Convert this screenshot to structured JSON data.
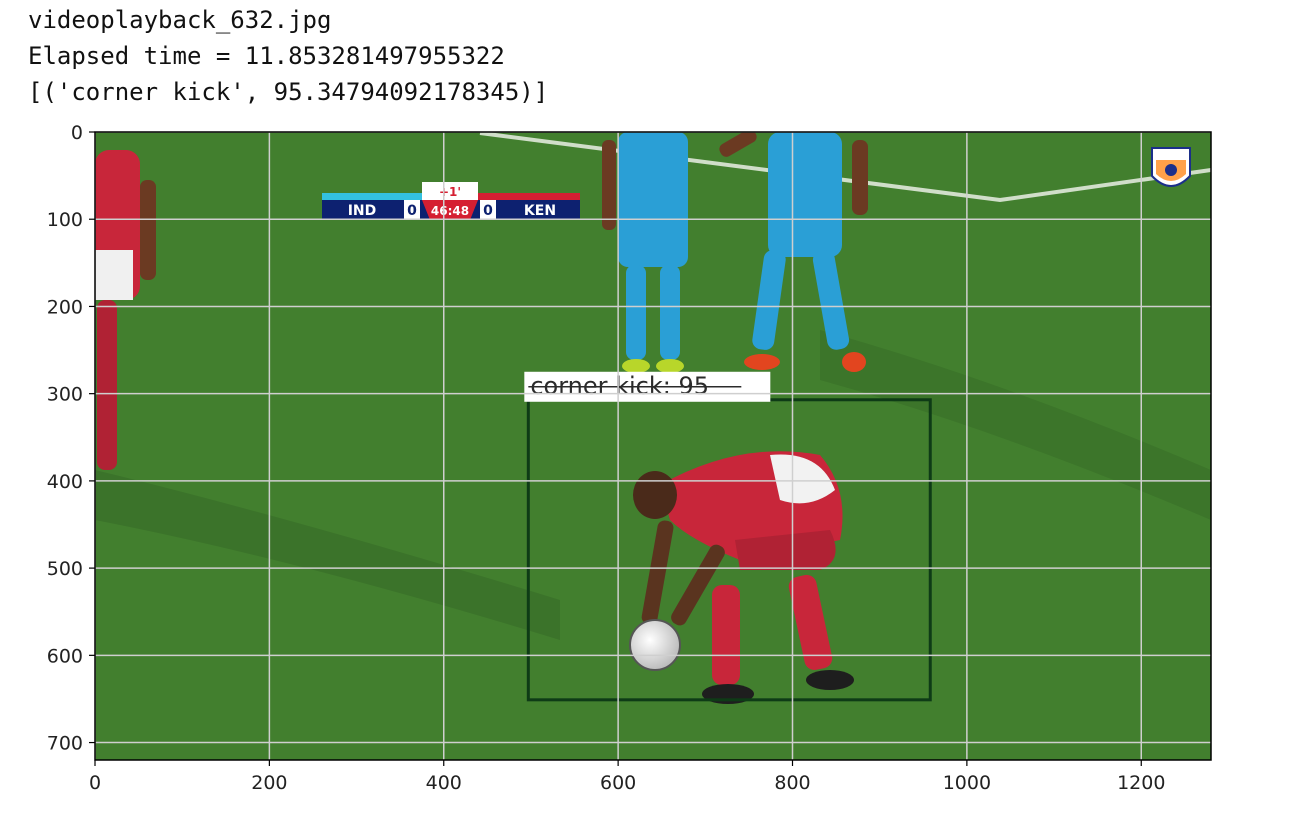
{
  "output": {
    "filename": "videoplayback_632.jpg",
    "elapsed": "Elapsed time = 11.853281497955322",
    "prediction": "[('corner kick', 95.34794092178345)]"
  },
  "plot": {
    "x_ticks": [
      "0",
      "200",
      "400",
      "600",
      "800",
      "1000",
      "1200"
    ],
    "y_ticks": [
      "0",
      "100",
      "200",
      "300",
      "400",
      "500",
      "600",
      "700"
    ],
    "x_range": [
      0,
      1280
    ],
    "y_range": [
      0,
      720
    ],
    "grid": true,
    "grid_color": "#cfcfcf"
  },
  "scoreboard": {
    "team_home": "IND",
    "score_home": "0",
    "clock": "46:48",
    "score_away": "0",
    "team_away": "KEN",
    "added_time": "+1'"
  },
  "detection": {
    "label": "corner kick: 95",
    "box": {
      "x1": 497,
      "y1": 307,
      "x2": 958,
      "y2": 651
    },
    "box_color": "#0e3b16"
  },
  "colors": {
    "pitch": "#3f7b2c",
    "home_team": "#2a9fd6",
    "away_team": "#c8263a"
  }
}
